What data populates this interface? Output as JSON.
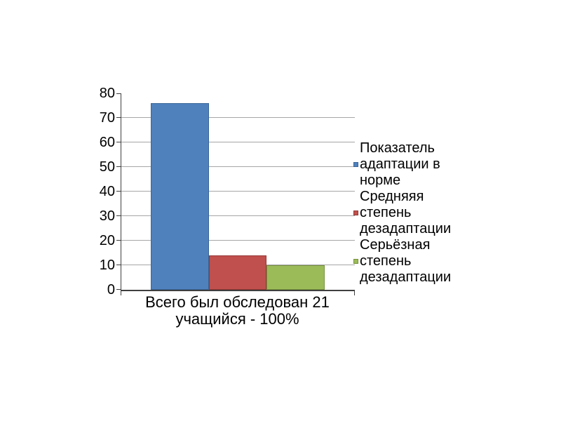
{
  "page": {
    "background_color": "#ffffff"
  },
  "chart_data": {
    "type": "bar",
    "title": "",
    "xlabel": "Всего был обследован 21\nучащийся - 100%",
    "ylabel": "",
    "ylim": [
      0,
      80
    ],
    "y_ticks": [
      0,
      10,
      20,
      30,
      40,
      50,
      60,
      70,
      80
    ],
    "gridline_values": [
      10,
      20,
      30,
      40,
      50,
      60,
      70
    ],
    "grid": true,
    "legend_position": "right",
    "categories": [
      "Всего был обследован 21 учащийся - 100%"
    ],
    "series": [
      {
        "name": "Показатель\nадаптации в\nнорме",
        "values": [
          76
        ],
        "color": "#4F81BD",
        "border_color": "#3A6597"
      },
      {
        "name": "Средняяя\nстепень\nдезадаптации",
        "values": [
          14
        ],
        "color": "#C0504D",
        "border_color": "#943735"
      },
      {
        "name": "Серьёзная\nстепень\nдезадаптации",
        "values": [
          10
        ],
        "color": "#9BBB59",
        "border_color": "#77933C"
      }
    ],
    "axis_color": "#3f3f3f",
    "gridline_color": "#a6a6a6",
    "text_color": "#000000"
  }
}
